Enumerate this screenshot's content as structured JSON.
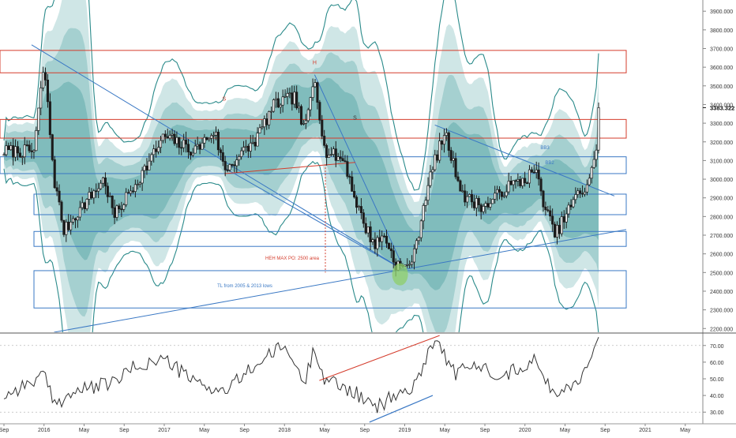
{
  "chart_data": [
    {
      "type": "candlestick",
      "pane": "price",
      "scale": "linear",
      "ylim": [
        2180,
        3960
      ],
      "y_ticks": [
        "2200.000",
        "2300.000",
        "2400.000",
        "2500.000",
        "2600.000",
        "2700.000",
        "2800.000",
        "2900.000",
        "3000.000",
        "3100.000",
        "3200.000",
        "3300.000",
        "3400.000",
        "3500.000",
        "3600.000",
        "3700.000",
        "3800.000",
        "3900.000"
      ],
      "last_price_label": "3383.322",
      "last_price": 3383.322,
      "x_ticks": [
        "Sep",
        "2016",
        "May",
        "Sep",
        "2017",
        "May",
        "Sep",
        "2018",
        "May",
        "Sep",
        "2019",
        "May",
        "Sep",
        "2020",
        "May",
        "Sep",
        "2021",
        "May"
      ],
      "approx_close_path": [
        {
          "x": "2015-08",
          "y": 3150
        },
        {
          "x": "2015-11",
          "y": 3150
        },
        {
          "x": "2015-12",
          "y": 3620
        },
        {
          "x": "2016-01",
          "y": 3000
        },
        {
          "x": "2016-02",
          "y": 2720
        },
        {
          "x": "2016-03",
          "y": 2800
        },
        {
          "x": "2016-06",
          "y": 3000
        },
        {
          "x": "2016-07",
          "y": 2800
        },
        {
          "x": "2016-10",
          "y": 3050
        },
        {
          "x": "2016-12",
          "y": 3230
        },
        {
          "x": "2017-03",
          "y": 3150
        },
        {
          "x": "2017-05",
          "y": 3260
        },
        {
          "x": "2017-06",
          "y": 3050
        },
        {
          "x": "2017-09",
          "y": 3200
        },
        {
          "x": "2017-11",
          "y": 3400
        },
        {
          "x": "2018-01",
          "y": 3440
        },
        {
          "x": "2018-02",
          "y": 3250
        },
        {
          "x": "2018-03",
          "y": 3560
        },
        {
          "x": "2018-04",
          "y": 3150
        },
        {
          "x": "2018-06",
          "y": 3100
        },
        {
          "x": "2018-07",
          "y": 2900
        },
        {
          "x": "2018-08",
          "y": 2750
        },
        {
          "x": "2018-09",
          "y": 2650
        },
        {
          "x": "2018-10",
          "y": 2700
        },
        {
          "x": "2018-11",
          "y": 2550
        },
        {
          "x": "2018-12",
          "y": 2520
        },
        {
          "x": "2019-01",
          "y": 2600
        },
        {
          "x": "2019-02",
          "y": 2900
        },
        {
          "x": "2019-03",
          "y": 3100
        },
        {
          "x": "2019-04",
          "y": 3250
        },
        {
          "x": "2019-05",
          "y": 3050
        },
        {
          "x": "2019-06",
          "y": 2900
        },
        {
          "x": "2019-08",
          "y": 2850
        },
        {
          "x": "2019-10",
          "y": 2950
        },
        {
          "x": "2019-12",
          "y": 3000
        },
        {
          "x": "2020-01",
          "y": 3050
        },
        {
          "x": "2020-02",
          "y": 2850
        },
        {
          "x": "2020-03",
          "y": 2700
        },
        {
          "x": "2020-05",
          "y": 2900
        },
        {
          "x": "2020-06",
          "y": 2950
        },
        {
          "x": "2020-07",
          "y": 3100
        },
        {
          "x": "2020-07",
          "y": 3383
        }
      ],
      "horizontal_zones": [
        {
          "color": "red",
          "top": 3690,
          "bottom": 3570
        },
        {
          "color": "red",
          "top": 3320,
          "bottom": 3220
        },
        {
          "color": "blue",
          "top": 3120,
          "bottom": 3030
        },
        {
          "color": "blue",
          "top": 2920,
          "bottom": 2810
        },
        {
          "color": "blue",
          "top": 2720,
          "bottom": 2640
        },
        {
          "color": "blue",
          "top": 2510,
          "bottom": 2310
        }
      ],
      "annotations": [
        "H",
        "S",
        "S",
        "HEH MAX PO: 2500 area",
        "TL from 2005 & 2013 lows",
        "BB3",
        "BB2"
      ]
    },
    {
      "type": "line",
      "pane": "rsi",
      "ylim": [
        23,
        77
      ],
      "y_ticks": [
        "30.00",
        "40.00",
        "50.00",
        "60.00",
        "70.00"
      ],
      "approx_values": [
        {
          "x": "2015-08",
          "y": 40
        },
        {
          "x": "2015-12",
          "y": 52
        },
        {
          "x": "2016-01",
          "y": 35
        },
        {
          "x": "2016-03",
          "y": 42
        },
        {
          "x": "2016-07",
          "y": 48
        },
        {
          "x": "2016-09",
          "y": 57
        },
        {
          "x": "2016-12",
          "y": 62
        },
        {
          "x": "2017-03",
          "y": 48
        },
        {
          "x": "2017-06",
          "y": 42
        },
        {
          "x": "2017-09",
          "y": 58
        },
        {
          "x": "2017-12",
          "y": 70
        },
        {
          "x": "2018-02",
          "y": 47
        },
        {
          "x": "2018-03",
          "y": 70
        },
        {
          "x": "2018-04",
          "y": 50
        },
        {
          "x": "2018-07",
          "y": 42
        },
        {
          "x": "2018-09",
          "y": 32
        },
        {
          "x": "2018-11",
          "y": 40
        },
        {
          "x": "2019-01",
          "y": 45
        },
        {
          "x": "2019-02",
          "y": 62
        },
        {
          "x": "2019-03",
          "y": 75
        },
        {
          "x": "2019-05",
          "y": 53
        },
        {
          "x": "2019-07",
          "y": 58
        },
        {
          "x": "2019-10",
          "y": 52
        },
        {
          "x": "2020-01",
          "y": 62
        },
        {
          "x": "2020-02",
          "y": 48
        },
        {
          "x": "2020-03",
          "y": 42
        },
        {
          "x": "2020-05",
          "y": 47
        },
        {
          "x": "2020-06",
          "y": 55
        },
        {
          "x": "2020-07",
          "y": 73
        }
      ]
    }
  ],
  "colors": {
    "band_outer": "#cfe6e6",
    "band_mid": "#a5d0d0",
    "band_inner": "#80bcbc",
    "bollinger_line": "#2a8a8a",
    "candle": "#1c1c1c",
    "zone_red": "#d43c2c",
    "zone_blue": "#3a78c4",
    "trendline_blue": "#3a78c4",
    "trendline_red": "#d43c2c",
    "marker_green": "#8fcf6a",
    "grid": "#d8d8d8",
    "axis_text": "#333333"
  }
}
